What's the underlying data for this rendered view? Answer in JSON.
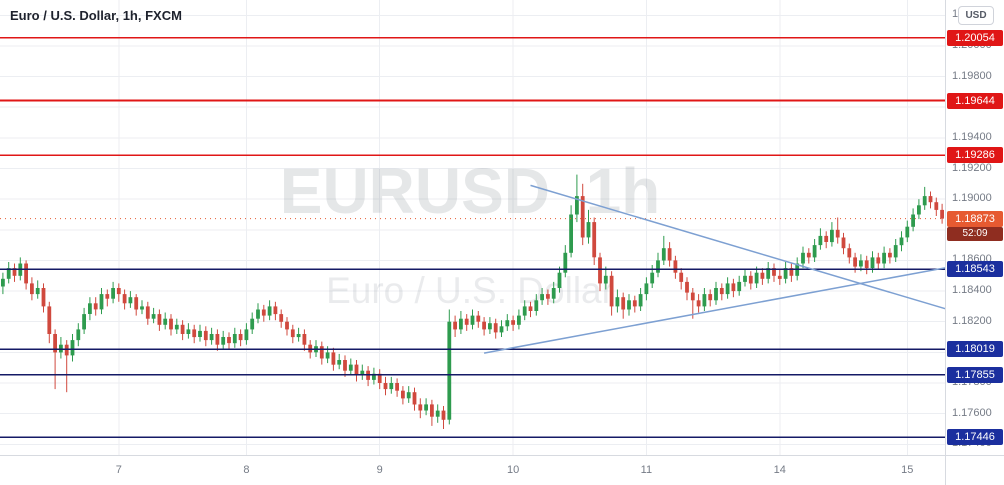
{
  "legend": {
    "title": "Euro / U.S. Dollar, 1h, FXCM"
  },
  "watermark": {
    "title": "EURUSD  1h",
    "subtitle": "Euro / U.S. Dollar"
  },
  "price_axis": {
    "currency_badge": "USD",
    "ticks": [
      {
        "value": 1.202,
        "label": "1.20200"
      },
      {
        "value": 1.2,
        "label": "1.20000"
      },
      {
        "value": 1.198,
        "label": "1.19800"
      },
      {
        "value": 1.196,
        "label": "1.19600"
      },
      {
        "value": 1.194,
        "label": "1.19400"
      },
      {
        "value": 1.192,
        "label": "1.19200"
      },
      {
        "value": 1.19,
        "label": "1.19000"
      },
      {
        "value": 1.188,
        "label": "1.18800"
      },
      {
        "value": 1.186,
        "label": "1.18600"
      },
      {
        "value": 1.184,
        "label": "1.18400"
      },
      {
        "value": 1.182,
        "label": "1.18200"
      },
      {
        "value": 1.18,
        "label": "1.18000"
      },
      {
        "value": 1.178,
        "label": "1.17800"
      },
      {
        "value": 1.176,
        "label": "1.17600"
      },
      {
        "value": 1.174,
        "label": "1.17400"
      }
    ]
  },
  "time_axis": {
    "ticks": [
      {
        "label": "7",
        "index": 20
      },
      {
        "label": "8",
        "index": 42
      },
      {
        "label": "9",
        "index": 65
      },
      {
        "label": "10",
        "index": 88
      },
      {
        "label": "11",
        "index": 111
      },
      {
        "label": "14",
        "index": 134
      },
      {
        "label": "15",
        "index": 156
      }
    ]
  },
  "last_price": {
    "value": 1.18873,
    "label": "1.18873",
    "countdown": "52:09",
    "badge_color": "#e65a31",
    "countdown_color": "#8f2d20"
  },
  "levels": [
    {
      "type": "resistance",
      "price": 1.20054,
      "label": "1.20054",
      "color": "#e01616",
      "line_color": "#e01616"
    },
    {
      "type": "resistance",
      "price": 1.19644,
      "label": "1.19644",
      "color": "#e01616",
      "line_color": "#e01616"
    },
    {
      "type": "resistance",
      "price": 1.19286,
      "label": "1.19286",
      "color": "#e01616",
      "line_color": "#e01616"
    },
    {
      "type": "support",
      "price": 1.18543,
      "label": "1.18543",
      "color": "#1b2f9e",
      "line_color": "#141a66"
    },
    {
      "type": "support",
      "price": 1.18019,
      "label": "1.18019",
      "color": "#1b2f9e",
      "line_color": "#141a66"
    },
    {
      "type": "support",
      "price": 1.17855,
      "label": "1.17855",
      "color": "#1b2f9e",
      "line_color": "#141a66"
    },
    {
      "type": "support",
      "price": 1.17446,
      "label": "1.17446",
      "color": "#1b2f9e",
      "line_color": "#141a66"
    }
  ],
  "trendlines": [
    {
      "name": "descending-trendline",
      "from_index": 91,
      "from_price": 1.1909,
      "to_index": 163,
      "to_price": 1.1828,
      "color": "#7da0d2"
    },
    {
      "name": "ascending-trendline",
      "from_index": 83,
      "from_price": 1.17995,
      "to_index": 163,
      "to_price": 1.18555,
      "color": "#7da0d2"
    }
  ],
  "chart_data": {
    "type": "candlestick",
    "symbol": "EURUSD",
    "interval": "1h",
    "exchange": "FXCM",
    "ylim": [
      1.1733,
      1.203
    ],
    "up_color": "#2e9b4e",
    "down_color": "#d0493e",
    "candles": [
      [
        1.1843,
        1.1852,
        1.1838,
        1.1848
      ],
      [
        1.1848,
        1.1859,
        1.1845,
        1.1855
      ],
      [
        1.1855,
        1.1858,
        1.1846,
        1.185
      ],
      [
        1.185,
        1.1862,
        1.1847,
        1.1858
      ],
      [
        1.1858,
        1.186,
        1.1841,
        1.1845
      ],
      [
        1.1845,
        1.1849,
        1.1834,
        1.1838
      ],
      [
        1.1838,
        1.1847,
        1.1835,
        1.1842
      ],
      [
        1.1842,
        1.1845,
        1.1826,
        1.183
      ],
      [
        1.183,
        1.1833,
        1.1806,
        1.1812
      ],
      [
        1.1812,
        1.1815,
        1.1776,
        1.18
      ],
      [
        1.18,
        1.181,
        1.1796,
        1.1805
      ],
      [
        1.1805,
        1.1808,
        1.1774,
        1.1798
      ],
      [
        1.1798,
        1.1812,
        1.1794,
        1.1808
      ],
      [
        1.1808,
        1.1819,
        1.1804,
        1.1815
      ],
      [
        1.1815,
        1.1829,
        1.1812,
        1.1825
      ],
      [
        1.1825,
        1.1836,
        1.1821,
        1.1832
      ],
      [
        1.1832,
        1.1836,
        1.1824,
        1.1828
      ],
      [
        1.1828,
        1.1842,
        1.1825,
        1.1838
      ],
      [
        1.1838,
        1.1841,
        1.183,
        1.1835
      ],
      [
        1.1835,
        1.1846,
        1.1832,
        1.1842
      ],
      [
        1.1842,
        1.1845,
        1.1833,
        1.1838
      ],
      [
        1.1838,
        1.1841,
        1.1828,
        1.1832
      ],
      [
        1.1832,
        1.184,
        1.1829,
        1.1836
      ],
      [
        1.1836,
        1.1838,
        1.1824,
        1.1828
      ],
      [
        1.1828,
        1.1834,
        1.1825,
        1.183
      ],
      [
        1.183,
        1.1833,
        1.1818,
        1.1822
      ],
      [
        1.1822,
        1.1829,
        1.1819,
        1.1825
      ],
      [
        1.1825,
        1.1828,
        1.1814,
        1.1818
      ],
      [
        1.1818,
        1.1826,
        1.1815,
        1.1822
      ],
      [
        1.1822,
        1.1825,
        1.1811,
        1.1815
      ],
      [
        1.1815,
        1.1822,
        1.1812,
        1.1818
      ],
      [
        1.1818,
        1.1821,
        1.1808,
        1.1812
      ],
      [
        1.1812,
        1.1819,
        1.1809,
        1.1815
      ],
      [
        1.1815,
        1.1818,
        1.1806,
        1.181
      ],
      [
        1.181,
        1.1818,
        1.1807,
        1.1814
      ],
      [
        1.1814,
        1.1817,
        1.1804,
        1.1808
      ],
      [
        1.1808,
        1.1816,
        1.1805,
        1.1812
      ],
      [
        1.1812,
        1.1815,
        1.1801,
        1.1805
      ],
      [
        1.1805,
        1.1814,
        1.1802,
        1.181
      ],
      [
        1.181,
        1.1813,
        1.1802,
        1.1806
      ],
      [
        1.1806,
        1.1816,
        1.1803,
        1.1812
      ],
      [
        1.1812,
        1.1815,
        1.1804,
        1.1808
      ],
      [
        1.1808,
        1.1819,
        1.1805,
        1.1815
      ],
      [
        1.1815,
        1.1826,
        1.1812,
        1.1822
      ],
      [
        1.1822,
        1.1832,
        1.1819,
        1.1828
      ],
      [
        1.1828,
        1.1831,
        1.182,
        1.1824
      ],
      [
        1.1824,
        1.1834,
        1.1821,
        1.183
      ],
      [
        1.183,
        1.1833,
        1.1821,
        1.1825
      ],
      [
        1.1825,
        1.1828,
        1.1816,
        1.182
      ],
      [
        1.182,
        1.1823,
        1.1811,
        1.1815
      ],
      [
        1.1815,
        1.1818,
        1.1806,
        1.181
      ],
      [
        1.181,
        1.1816,
        1.1807,
        1.1812
      ],
      [
        1.1812,
        1.1815,
        1.1801,
        1.1805
      ],
      [
        1.1805,
        1.1808,
        1.1796,
        1.18
      ],
      [
        1.18,
        1.1808,
        1.1797,
        1.1804
      ],
      [
        1.1804,
        1.1807,
        1.1792,
        1.1796
      ],
      [
        1.1796,
        1.1804,
        1.1793,
        1.18
      ],
      [
        1.18,
        1.1803,
        1.1788,
        1.1792
      ],
      [
        1.1792,
        1.1799,
        1.1789,
        1.1795
      ],
      [
        1.1795,
        1.1798,
        1.1784,
        1.1788
      ],
      [
        1.1788,
        1.1796,
        1.1785,
        1.1792
      ],
      [
        1.1792,
        1.1795,
        1.1781,
        1.1785
      ],
      [
        1.1785,
        1.1792,
        1.1782,
        1.1788
      ],
      [
        1.1788,
        1.1791,
        1.1778,
        1.1782
      ],
      [
        1.1782,
        1.179,
        1.1779,
        1.1786
      ],
      [
        1.1786,
        1.1789,
        1.1776,
        1.178
      ],
      [
        1.178,
        1.1784,
        1.1772,
        1.1776
      ],
      [
        1.1776,
        1.1784,
        1.1773,
        1.178
      ],
      [
        1.178,
        1.1783,
        1.1771,
        1.1775
      ],
      [
        1.1775,
        1.1778,
        1.1766,
        1.177
      ],
      [
        1.177,
        1.1778,
        1.1767,
        1.1774
      ],
      [
        1.1774,
        1.1777,
        1.1762,
        1.1766
      ],
      [
        1.1766,
        1.177,
        1.1757,
        1.1762
      ],
      [
        1.1762,
        1.177,
        1.1759,
        1.1766
      ],
      [
        1.1766,
        1.1769,
        1.1752,
        1.1758
      ],
      [
        1.1758,
        1.1766,
        1.1754,
        1.1762
      ],
      [
        1.1762,
        1.1765,
        1.175,
        1.1756
      ],
      [
        1.1756,
        1.1828,
        1.1753,
        1.182
      ],
      [
        1.182,
        1.1824,
        1.181,
        1.1815
      ],
      [
        1.1815,
        1.1827,
        1.1812,
        1.1822
      ],
      [
        1.1822,
        1.1825,
        1.1814,
        1.1818
      ],
      [
        1.1818,
        1.1828,
        1.1815,
        1.1824
      ],
      [
        1.1824,
        1.1827,
        1.1816,
        1.182
      ],
      [
        1.182,
        1.1823,
        1.1811,
        1.1815
      ],
      [
        1.1815,
        1.1823,
        1.1812,
        1.1819
      ],
      [
        1.1819,
        1.1822,
        1.1809,
        1.1813
      ],
      [
        1.1813,
        1.1821,
        1.181,
        1.1817
      ],
      [
        1.1817,
        1.1825,
        1.1814,
        1.1821
      ],
      [
        1.1821,
        1.1824,
        1.1814,
        1.1818
      ],
      [
        1.1818,
        1.1828,
        1.1815,
        1.1824
      ],
      [
        1.1824,
        1.1834,
        1.1821,
        1.183
      ],
      [
        1.183,
        1.1833,
        1.1823,
        1.1827
      ],
      [
        1.1827,
        1.1838,
        1.1824,
        1.1834
      ],
      [
        1.1834,
        1.1842,
        1.1831,
        1.1838
      ],
      [
        1.1838,
        1.1841,
        1.1831,
        1.1835
      ],
      [
        1.1835,
        1.1846,
        1.1832,
        1.1842
      ],
      [
        1.1842,
        1.1856,
        1.1839,
        1.1852
      ],
      [
        1.1852,
        1.187,
        1.1849,
        1.1865
      ],
      [
        1.1865,
        1.1896,
        1.1862,
        1.189
      ],
      [
        1.189,
        1.1916,
        1.1885,
        1.1902
      ],
      [
        1.1902,
        1.191,
        1.187,
        1.1875
      ],
      [
        1.1875,
        1.1893,
        1.1871,
        1.1885
      ],
      [
        1.1885,
        1.1888,
        1.1857,
        1.1862
      ],
      [
        1.1862,
        1.1865,
        1.184,
        1.1845
      ],
      [
        1.1845,
        1.1856,
        1.1841,
        1.185
      ],
      [
        1.185,
        1.1853,
        1.1824,
        1.183
      ],
      [
        1.183,
        1.1841,
        1.1826,
        1.1836
      ],
      [
        1.1836,
        1.1839,
        1.1822,
        1.1828
      ],
      [
        1.1828,
        1.1838,
        1.1824,
        1.1834
      ],
      [
        1.1834,
        1.1837,
        1.1826,
        1.183
      ],
      [
        1.183,
        1.1842,
        1.1827,
        1.1838
      ],
      [
        1.1838,
        1.1849,
        1.1834,
        1.1845
      ],
      [
        1.1845,
        1.1857,
        1.1842,
        1.1852
      ],
      [
        1.1852,
        1.1865,
        1.1849,
        1.186
      ],
      [
        1.186,
        1.1876,
        1.1857,
        1.1868
      ],
      [
        1.1868,
        1.1872,
        1.1856,
        1.186
      ],
      [
        1.186,
        1.1863,
        1.1848,
        1.1852
      ],
      [
        1.1852,
        1.1855,
        1.1841,
        1.1846
      ],
      [
        1.1846,
        1.1849,
        1.1834,
        1.1839
      ],
      [
        1.1839,
        1.1842,
        1.1822,
        1.1834
      ],
      [
        1.1834,
        1.1838,
        1.1826,
        1.183
      ],
      [
        1.183,
        1.1842,
        1.1827,
        1.1838
      ],
      [
        1.1838,
        1.1841,
        1.183,
        1.1834
      ],
      [
        1.1834,
        1.1846,
        1.1831,
        1.1842
      ],
      [
        1.1842,
        1.1845,
        1.1834,
        1.1838
      ],
      [
        1.1838,
        1.1849,
        1.1835,
        1.1845
      ],
      [
        1.1845,
        1.1848,
        1.1836,
        1.184
      ],
      [
        1.184,
        1.185,
        1.1837,
        1.1846
      ],
      [
        1.1846,
        1.1854,
        1.1843,
        1.185
      ],
      [
        1.185,
        1.1853,
        1.1841,
        1.1845
      ],
      [
        1.1845,
        1.1856,
        1.1842,
        1.1852
      ],
      [
        1.1852,
        1.1855,
        1.1844,
        1.1848
      ],
      [
        1.1848,
        1.1859,
        1.1845,
        1.1855
      ],
      [
        1.1855,
        1.1858,
        1.1846,
        1.185
      ],
      [
        1.185,
        1.1854,
        1.1844,
        1.1848
      ],
      [
        1.1848,
        1.1859,
        1.1845,
        1.1855
      ],
      [
        1.1855,
        1.1858,
        1.1846,
        1.185
      ],
      [
        1.185,
        1.1862,
        1.1847,
        1.1858
      ],
      [
        1.1858,
        1.1869,
        1.1855,
        1.1865
      ],
      [
        1.1865,
        1.1868,
        1.1858,
        1.1862
      ],
      [
        1.1862,
        1.1874,
        1.1859,
        1.187
      ],
      [
        1.187,
        1.1881,
        1.1867,
        1.1876
      ],
      [
        1.1876,
        1.1879,
        1.1868,
        1.1872
      ],
      [
        1.1872,
        1.1885,
        1.1869,
        1.188
      ],
      [
        1.188,
        1.1888,
        1.1871,
        1.1875
      ],
      [
        1.1875,
        1.1878,
        1.1864,
        1.1868
      ],
      [
        1.1868,
        1.1871,
        1.1858,
        1.1862
      ],
      [
        1.1862,
        1.1865,
        1.1852,
        1.1856
      ],
      [
        1.1856,
        1.1864,
        1.1853,
        1.186
      ],
      [
        1.186,
        1.1863,
        1.1851,
        1.1855
      ],
      [
        1.1855,
        1.1866,
        1.1852,
        1.1862
      ],
      [
        1.1862,
        1.1865,
        1.1854,
        1.1858
      ],
      [
        1.1858,
        1.1869,
        1.1855,
        1.1865
      ],
      [
        1.1865,
        1.1868,
        1.1858,
        1.1862
      ],
      [
        1.1862,
        1.1874,
        1.1859,
        1.187
      ],
      [
        1.187,
        1.1879,
        1.1866,
        1.1875
      ],
      [
        1.1875,
        1.1886,
        1.1872,
        1.1882
      ],
      [
        1.1882,
        1.1894,
        1.1879,
        1.189
      ],
      [
        1.189,
        1.19,
        1.1887,
        1.1896
      ],
      [
        1.1896,
        1.1908,
        1.1893,
        1.1902
      ],
      [
        1.1902,
        1.1905,
        1.1894,
        1.1898
      ],
      [
        1.1898,
        1.1901,
        1.1889,
        1.1893
      ],
      [
        1.1893,
        1.1897,
        1.1884,
        1.18873
      ]
    ]
  }
}
